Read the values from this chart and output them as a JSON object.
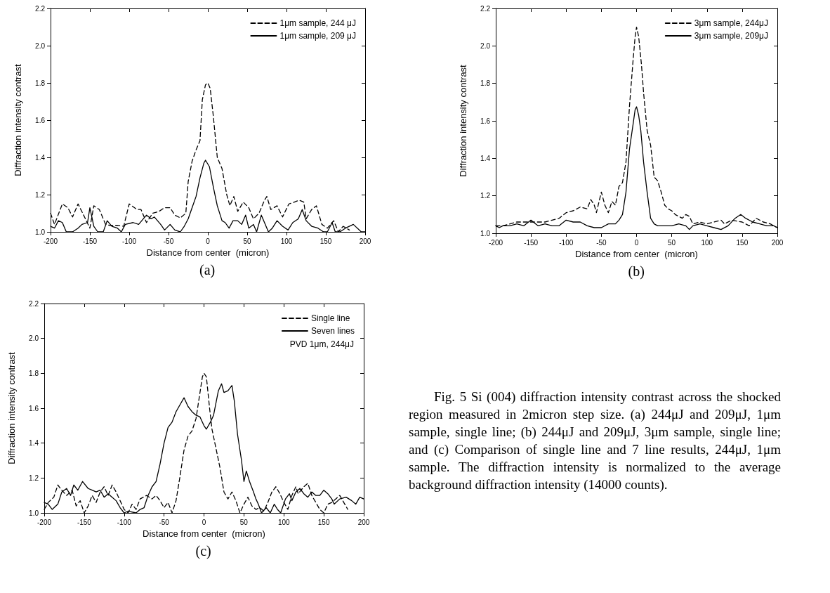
{
  "chart_data": [
    {
      "type": "line",
      "annotations": [
        "(a)"
      ],
      "xlabel": "Distance from center  (micron)",
      "ylabel": "Diffraction intensity contrast",
      "xlim": [
        -200,
        200
      ],
      "xticks": [
        -200,
        -150,
        -100,
        -50,
        0,
        50,
        100,
        150,
        200
      ],
      "ylim": [
        1.0,
        2.2
      ],
      "yticks": [
        {
          "value": 1.0,
          "label": "1.0"
        },
        {
          "value": 1.2,
          "label": "1.2"
        },
        {
          "value": 1.4,
          "label": "1.4"
        },
        {
          "value": 1.6,
          "label": "1.6"
        },
        {
          "value": 1.8,
          "label": "1.8"
        },
        {
          "value": 2.0,
          "label": "2.0"
        },
        {
          "value": 2.2,
          "label": "2.2"
        }
      ],
      "grid": false,
      "legend": "top right",
      "marker": "none",
      "series": [
        {
          "name": "1μm sample, 244 μJ",
          "color": "#000000",
          "line_style": "dashed",
          "x": [
            -200,
            -195,
            -185,
            -178,
            -172,
            -165,
            -158,
            -150,
            -145,
            -138,
            -130,
            -125,
            -115,
            -107,
            -100,
            -90,
            -85,
            -78,
            -70,
            -62,
            -55,
            -48,
            -42,
            -35,
            -28,
            -25,
            -20,
            -15,
            -10,
            -7,
            -3,
            0,
            3,
            7,
            12,
            18,
            24,
            28,
            33,
            38,
            45,
            52,
            58,
            65,
            72,
            75,
            80,
            88,
            95,
            103,
            110,
            116,
            122,
            125,
            132,
            138,
            145,
            152,
            160,
            166,
            172,
            180
          ],
          "values": [
            1.1,
            1.04,
            1.15,
            1.13,
            1.08,
            1.15,
            1.09,
            1.02,
            1.14,
            1.12,
            1.04,
            1.035,
            1.035,
            1.03,
            1.15,
            1.12,
            1.12,
            1.05,
            1.1,
            1.11,
            1.13,
            1.13,
            1.09,
            1.075,
            1.1,
            1.27,
            1.38,
            1.44,
            1.49,
            1.71,
            1.79,
            1.8,
            1.77,
            1.62,
            1.4,
            1.34,
            1.2,
            1.14,
            1.19,
            1.11,
            1.16,
            1.13,
            1.07,
            1.1,
            1.17,
            1.19,
            1.12,
            1.14,
            1.08,
            1.15,
            1.16,
            1.17,
            1.16,
            1.07,
            1.12,
            1.14,
            1.04,
            1.02,
            1.06,
            1.0,
            1.03,
            1.01
          ]
        },
        {
          "name": "1μm sample, 209 μJ",
          "color": "#000000",
          "line_style": "solid",
          "x": [
            -200,
            -195,
            -190,
            -185,
            -180,
            -172,
            -165,
            -160,
            -153,
            -150,
            -145,
            -140,
            -133,
            -128,
            -122,
            -115,
            -110,
            -105,
            -95,
            -88,
            -82,
            -78,
            -72,
            -68,
            -60,
            -55,
            -48,
            -42,
            -35,
            -30,
            -25,
            -20,
            -15,
            -10,
            -5,
            -3,
            2,
            7,
            12,
            18,
            22,
            27,
            32,
            38,
            43,
            48,
            52,
            58,
            62,
            68,
            72,
            77,
            82,
            88,
            95,
            102,
            108,
            115,
            120,
            125,
            132,
            140,
            147,
            152,
            158,
            162,
            168,
            175,
            185,
            195,
            200
          ],
          "values": [
            1.03,
            1.02,
            1.06,
            1.05,
            1.0,
            1.0,
            1.02,
            1.04,
            1.05,
            1.13,
            1.03,
            1.0,
            1.0,
            1.06,
            1.03,
            1.02,
            1.0,
            1.04,
            1.05,
            1.04,
            1.07,
            1.09,
            1.07,
            1.08,
            1.04,
            1.01,
            1.04,
            1.01,
            1.0,
            1.03,
            1.07,
            1.13,
            1.19,
            1.29,
            1.37,
            1.385,
            1.35,
            1.24,
            1.14,
            1.06,
            1.05,
            1.02,
            1.06,
            1.06,
            1.04,
            1.09,
            1.02,
            1.04,
            1.0,
            1.09,
            1.05,
            1.0,
            1.02,
            1.06,
            1.03,
            1.01,
            1.05,
            1.07,
            1.12,
            1.06,
            1.03,
            1.02,
            1.0,
            1.0,
            1.05,
            1.0,
            1.0,
            1.02,
            1.04,
            1.0,
            1.0
          ]
        }
      ]
    },
    {
      "type": "line",
      "annotations": [
        "(b)"
      ],
      "xlabel": "Distance from center  (micron)",
      "ylabel": "Diffraction intensity contrast",
      "xlim": [
        -200,
        200
      ],
      "xticks": [
        -200,
        -150,
        -100,
        -50,
        0,
        50,
        100,
        150,
        200
      ],
      "ylim": [
        1.0,
        2.2
      ],
      "yticks": [
        {
          "value": 1.0,
          "label": "1.0"
        },
        {
          "value": 1.2,
          "label": "1.2"
        },
        {
          "value": 1.4,
          "label": "1.4"
        },
        {
          "value": 1.6,
          "label": "1.6"
        },
        {
          "value": 1.8,
          "label": "1.8"
        },
        {
          "value": 2.0,
          "label": "2.0"
        },
        {
          "value": 2.2,
          "label": "2.2"
        }
      ],
      "grid": false,
      "legend": "top right",
      "marker": "none",
      "series": [
        {
          "name": "3μm sample, 244μJ",
          "color": "#000000",
          "line_style": "dashed",
          "x": [
            -200,
            -190,
            -170,
            -150,
            -130,
            -120,
            -110,
            -100,
            -90,
            -80,
            -70,
            -65,
            -60,
            -57,
            -50,
            -45,
            -40,
            -35,
            -30,
            -25,
            -20,
            -15,
            -10,
            -5,
            -2,
            0,
            3,
            7,
            10,
            15,
            20,
            25,
            30,
            35,
            40,
            45,
            50,
            55,
            60,
            65,
            70,
            75,
            80,
            90,
            100,
            110,
            120,
            125,
            135,
            150,
            160,
            170,
            180,
            190,
            200
          ],
          "values": [
            1.04,
            1.04,
            1.06,
            1.06,
            1.06,
            1.07,
            1.08,
            1.11,
            1.12,
            1.14,
            1.13,
            1.18,
            1.15,
            1.11,
            1.22,
            1.15,
            1.11,
            1.17,
            1.15,
            1.25,
            1.27,
            1.38,
            1.68,
            1.92,
            2.05,
            2.1,
            2.05,
            1.9,
            1.75,
            1.55,
            1.47,
            1.3,
            1.28,
            1.22,
            1.15,
            1.13,
            1.12,
            1.1,
            1.09,
            1.08,
            1.1,
            1.09,
            1.05,
            1.06,
            1.05,
            1.06,
            1.07,
            1.05,
            1.07,
            1.06,
            1.04,
            1.08,
            1.06,
            1.05,
            1.03
          ]
        },
        {
          "name": "3μm sample, 209μJ",
          "color": "#000000",
          "line_style": "solid",
          "x": [
            -200,
            -195,
            -190,
            -180,
            -170,
            -160,
            -150,
            -140,
            -130,
            -120,
            -110,
            -100,
            -90,
            -80,
            -70,
            -60,
            -50,
            -40,
            -30,
            -25,
            -20,
            -15,
            -10,
            -5,
            -2,
            0,
            3,
            6,
            10,
            15,
            20,
            25,
            30,
            40,
            50,
            60,
            70,
            75,
            80,
            90,
            100,
            110,
            120,
            130,
            140,
            148,
            155,
            165,
            175,
            185,
            195,
            200
          ],
          "values": [
            1.04,
            1.03,
            1.04,
            1.04,
            1.05,
            1.04,
            1.07,
            1.04,
            1.05,
            1.04,
            1.04,
            1.07,
            1.06,
            1.06,
            1.04,
            1.03,
            1.03,
            1.05,
            1.05,
            1.07,
            1.1,
            1.22,
            1.45,
            1.58,
            1.66,
            1.675,
            1.63,
            1.55,
            1.38,
            1.22,
            1.08,
            1.05,
            1.04,
            1.04,
            1.04,
            1.05,
            1.04,
            1.02,
            1.04,
            1.05,
            1.04,
            1.03,
            1.02,
            1.04,
            1.08,
            1.1,
            1.08,
            1.06,
            1.05,
            1.04,
            1.04,
            1.03
          ]
        }
      ]
    },
    {
      "type": "line",
      "annotations": [
        "PVD 1μm, 244μJ",
        "(c)"
      ],
      "xlabel": "Distance from center  (micron)",
      "ylabel": "Diffraction intensity contrast",
      "xlim": [
        -200,
        200
      ],
      "xticks": [
        -200,
        -150,
        -100,
        -50,
        0,
        50,
        100,
        150,
        200
      ],
      "ylim": [
        1.0,
        2.2
      ],
      "yticks": [
        {
          "value": 1.0,
          "label": "1.0"
        },
        {
          "value": 1.2,
          "label": "1.2"
        },
        {
          "value": 1.4,
          "label": "1.4"
        },
        {
          "value": 1.6,
          "label": "1.6"
        },
        {
          "value": 1.8,
          "label": "1.8"
        },
        {
          "value": 2.0,
          "label": "2.0"
        },
        {
          "value": 2.2,
          "label": "2.2"
        }
      ],
      "grid": false,
      "legend": "top right",
      "marker": "none",
      "series": [
        {
          "name": "Single line",
          "color": "#000000",
          "line_style": "dashed",
          "x": [
            -200,
            -195,
            -188,
            -183,
            -178,
            -172,
            -165,
            -160,
            -155,
            -150,
            -145,
            -140,
            -135,
            -130,
            -125,
            -120,
            -115,
            -110,
            -105,
            -100,
            -95,
            -90,
            -85,
            -80,
            -72,
            -65,
            -60,
            -55,
            -50,
            -45,
            -40,
            -35,
            -30,
            -25,
            -20,
            -15,
            -10,
            -6,
            -2,
            0,
            3,
            7,
            10,
            15,
            20,
            25,
            30,
            35,
            40,
            45,
            50,
            55,
            60,
            65,
            70,
            75,
            80,
            85,
            90,
            95,
            100,
            105,
            110,
            115,
            118,
            125,
            130,
            135,
            140,
            145,
            150,
            155,
            160,
            170,
            175,
            180
          ],
          "values": [
            1.02,
            1.06,
            1.09,
            1.16,
            1.13,
            1.1,
            1.13,
            1.04,
            1.07,
            1.0,
            1.04,
            1.1,
            1.06,
            1.12,
            1.15,
            1.1,
            1.16,
            1.12,
            1.07,
            1.02,
            1.0,
            1.05,
            1.02,
            1.08,
            1.1,
            1.08,
            1.1,
            1.07,
            1.03,
            1.06,
            1.0,
            1.07,
            1.21,
            1.36,
            1.44,
            1.47,
            1.54,
            1.66,
            1.78,
            1.8,
            1.78,
            1.6,
            1.48,
            1.37,
            1.26,
            1.12,
            1.08,
            1.12,
            1.07,
            1.0,
            1.05,
            1.09,
            1.04,
            1.02,
            1.03,
            1.01,
            1.06,
            1.12,
            1.15,
            1.11,
            1.06,
            1.02,
            1.1,
            1.15,
            1.11,
            1.15,
            1.17,
            1.1,
            1.06,
            1.02,
            1.0,
            1.05,
            1.06,
            1.1,
            1.06,
            1.02
          ]
        },
        {
          "name": "Seven lines",
          "color": "#000000",
          "line_style": "solid",
          "x": [
            -200,
            -195,
            -190,
            -183,
            -178,
            -172,
            -167,
            -163,
            -158,
            -152,
            -145,
            -140,
            -135,
            -130,
            -125,
            -120,
            -115,
            -110,
            -105,
            -100,
            -95,
            -85,
            -80,
            -75,
            -70,
            -65,
            -60,
            -55,
            -50,
            -45,
            -40,
            -35,
            -30,
            -25,
            -20,
            -15,
            -10,
            -5,
            0,
            3,
            8,
            12,
            18,
            22,
            25,
            30,
            35,
            38,
            42,
            47,
            50,
            53,
            57,
            62,
            65,
            68,
            72,
            78,
            83,
            88,
            92,
            96,
            102,
            107,
            110,
            115,
            120,
            125,
            130,
            135,
            140,
            145,
            150,
            155,
            160,
            163,
            170,
            178,
            185,
            190,
            195,
            200
          ],
          "values": [
            1.06,
            1.05,
            1.02,
            1.05,
            1.12,
            1.14,
            1.1,
            1.16,
            1.13,
            1.18,
            1.14,
            1.13,
            1.12,
            1.13,
            1.09,
            1.11,
            1.09,
            1.07,
            1.03,
            1.0,
            1.01,
            1.0,
            1.02,
            1.03,
            1.1,
            1.15,
            1.18,
            1.28,
            1.4,
            1.49,
            1.52,
            1.58,
            1.62,
            1.66,
            1.61,
            1.58,
            1.56,
            1.55,
            1.5,
            1.48,
            1.52,
            1.56,
            1.7,
            1.74,
            1.69,
            1.7,
            1.73,
            1.64,
            1.45,
            1.3,
            1.18,
            1.24,
            1.18,
            1.12,
            1.08,
            1.05,
            1.0,
            1.03,
            1.0,
            1.05,
            1.02,
            1.0,
            1.08,
            1.11,
            1.07,
            1.12,
            1.14,
            1.11,
            1.09,
            1.12,
            1.1,
            1.1,
            1.13,
            1.11,
            1.08,
            1.05,
            1.08,
            1.09,
            1.07,
            1.05,
            1.09,
            1.08
          ]
        }
      ]
    },
    {
      "type": "other",
      "annotations": [
        "Fig. 5 Si (004) diffraction intensity contrast across the shocked region measured in 2micron step size. (a) 244μJ and 209μJ, 1μm sample, single line; (b) 244μJ and 209μJ, 3μm sample, single line; and (c) Comparison of single line and 7 line results, 244μJ, 1μm sample. The diffraction intensity is normalized to the average background diffraction intensity (14000 counts)."
      ]
    }
  ]
}
